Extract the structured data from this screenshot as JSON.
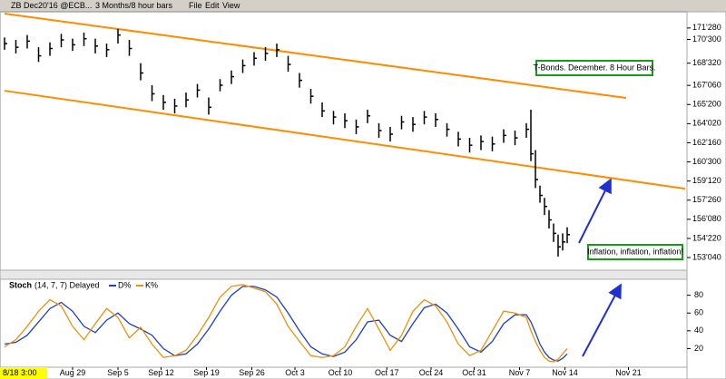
{
  "toolbar": {
    "symbol": "ZB Dec20'16 @ECB...",
    "interval": "3 Months/8 hour bars",
    "menu": [
      "File",
      "Edit",
      "View"
    ]
  },
  "chart_data": [
    {
      "type": "ohlc",
      "x": [
        0,
        1,
        2,
        3,
        4,
        5,
        6,
        7,
        8,
        9,
        10,
        11,
        12,
        13,
        14,
        15,
        16,
        17,
        18,
        19,
        20,
        21,
        22,
        23,
        24,
        25,
        26,
        27,
        28,
        29,
        30,
        31,
        32,
        33,
        34,
        35,
        36,
        37,
        38,
        39,
        40,
        41,
        42,
        43,
        44,
        45,
        46,
        46.4,
        46.8,
        47.2,
        47.6,
        48,
        48.4,
        48.8,
        49.2,
        49.6
      ],
      "high": [
        171.1,
        170.9,
        171.3,
        170.3,
        170.7,
        171.4,
        171.0,
        171.5,
        171.0,
        170.6,
        171.8,
        170.9,
        169.0,
        167.2,
        166.4,
        166.1,
        166.6,
        167.3,
        166.2,
        167.7,
        168.4,
        169.3,
        169.9,
        170.3,
        170.6,
        169.6,
        168.2,
        166.9,
        165.8,
        165.1,
        164.9,
        164.4,
        165.2,
        164.1,
        163.8,
        164.7,
        164.6,
        165.1,
        164.9,
        164.1,
        163.4,
        162.9,
        163.1,
        163.0,
        163.6,
        163.5,
        164.1,
        165.2,
        161.9,
        159.0,
        158.0,
        157.0,
        155.9,
        155.0,
        155.1,
        155.6
      ],
      "low": [
        170.1,
        169.8,
        170.2,
        169.1,
        169.6,
        170.3,
        170.0,
        170.4,
        169.8,
        169.5,
        170.6,
        169.6,
        167.6,
        165.9,
        165.2,
        164.9,
        165.4,
        166.2,
        164.8,
        166.7,
        167.3,
        168.2,
        168.8,
        169.2,
        169.5,
        168.3,
        167.0,
        165.7,
        164.6,
        164.0,
        163.7,
        163.2,
        164.1,
        162.9,
        162.6,
        163.6,
        163.4,
        164.0,
        163.8,
        163.0,
        162.2,
        161.7,
        161.9,
        161.8,
        162.5,
        162.3,
        162.9,
        161.0,
        158.8,
        157.6,
        156.6,
        155.5,
        154.4,
        153.2,
        153.7,
        154.3
      ],
      "close": [
        170.6,
        170.3,
        170.8,
        169.6,
        170.2,
        170.9,
        170.5,
        171.0,
        170.4,
        170.1,
        171.3,
        170.2,
        168.2,
        166.5,
        165.8,
        165.5,
        166.0,
        166.8,
        165.4,
        167.2,
        167.9,
        168.8,
        169.4,
        169.8,
        170.1,
        168.9,
        167.6,
        166.3,
        165.1,
        164.6,
        164.3,
        163.8,
        164.7,
        163.5,
        163.2,
        164.2,
        164.0,
        164.6,
        164.4,
        163.6,
        162.8,
        162.3,
        162.6,
        162.4,
        163.1,
        162.9,
        163.6,
        161.6,
        159.5,
        158.2,
        157.3,
        156.2,
        155.1,
        154.0,
        154.4,
        155.0
      ],
      "color": "#000000",
      "xlim": [
        0,
        60
      ],
      "ylim": [
        152.24,
        173.05
      ],
      "yticks": [
        {
          "value": 171.875,
          "label": "171'280"
        },
        {
          "value": 170.9375,
          "label": "170'300"
        },
        {
          "value": 169.0,
          "label": "168'320"
        },
        {
          "value": 167.1875,
          "label": "167'060"
        },
        {
          "value": 165.625,
          "label": "165'200"
        },
        {
          "value": 164.0625,
          "label": "164'020"
        },
        {
          "value": 162.5,
          "label": "162'160"
        },
        {
          "value": 160.9375,
          "label": "160'300"
        },
        {
          "value": 159.375,
          "label": "159'120"
        },
        {
          "value": 157.8125,
          "label": "157'260"
        },
        {
          "value": 156.25,
          "label": "156'080"
        },
        {
          "value": 154.6875,
          "label": "154'220"
        },
        {
          "value": 153.125,
          "label": "153'040"
        }
      ],
      "trendlines": [
        {
          "color": "#ff8c00",
          "x": [
            0,
            54.8
          ],
          "y": [
            173.05,
            166.16
          ]
        },
        {
          "color": "#ff8c00",
          "x": [
            0,
            60
          ],
          "y": [
            166.75,
            158.75
          ]
        }
      ],
      "annotations": [
        "T-Bonds. December. 8 Hour Bars.",
        "Inflation, inflation, inflation!"
      ]
    },
    {
      "type": "line",
      "title": "Stoch",
      "params": "(14, 7, 7) Delayed",
      "x": [
        0,
        1,
        2,
        3,
        4,
        5,
        6,
        7,
        8,
        9,
        10,
        11,
        12,
        13,
        14,
        15,
        16,
        17,
        18,
        19,
        20,
        21,
        22,
        23,
        24,
        25,
        26,
        27,
        28,
        29,
        30,
        31,
        32,
        33,
        34,
        35,
        36,
        37,
        38,
        39,
        40,
        41,
        42,
        43,
        44,
        45,
        46,
        46.4,
        46.8,
        47.2,
        47.6,
        48,
        48.4,
        48.8,
        49.2,
        49.6
      ],
      "series": [
        {
          "name": "D%",
          "color": "#1f3fbf",
          "values": [
            25,
            27,
            35,
            50,
            65,
            72,
            62,
            45,
            38,
            52,
            60,
            48,
            42,
            35,
            20,
            12,
            14,
            25,
            42,
            62,
            80,
            90,
            90,
            86,
            78,
            60,
            40,
            22,
            14,
            11,
            16,
            30,
            50,
            52,
            35,
            28,
            48,
            66,
            70,
            60,
            42,
            22,
            16,
            28,
            48,
            58,
            58,
            50,
            38,
            25,
            16,
            10,
            7,
            6,
            9,
            14
          ]
        },
        {
          "name": "K%",
          "color": "#e8920a",
          "values": [
            22,
            30,
            45,
            62,
            75,
            68,
            45,
            30,
            48,
            65,
            55,
            32,
            44,
            25,
            10,
            12,
            18,
            35,
            55,
            78,
            90,
            92,
            88,
            84,
            70,
            45,
            28,
            12,
            10,
            12,
            22,
            45,
            65,
            42,
            18,
            35,
            62,
            75,
            68,
            50,
            25,
            12,
            18,
            40,
            62,
            60,
            55,
            40,
            28,
            18,
            10,
            6,
            5,
            8,
            14,
            20
          ]
        }
      ],
      "xlim": [
        0,
        60
      ],
      "ylim": [
        -1,
        98
      ],
      "yticks": [
        20,
        40,
        60,
        80
      ],
      "cursor_label": "8/18 3:00",
      "xticks": [
        {
          "value": 6,
          "label": "Aug 29"
        },
        {
          "value": 10,
          "label": "Sep 5"
        },
        {
          "value": 13.8,
          "label": "Sep 12"
        },
        {
          "value": 17.8,
          "label": "Sep 19"
        },
        {
          "value": 21.8,
          "label": "Sep 26"
        },
        {
          "value": 25.6,
          "label": "Oct 3"
        },
        {
          "value": 29.6,
          "label": "Oct 10"
        },
        {
          "value": 33.7,
          "label": "Oct 17"
        },
        {
          "value": 37.6,
          "label": "Oct 24"
        },
        {
          "value": 41.4,
          "label": "Oct 31"
        },
        {
          "value": 45.4,
          "label": "Nov 7"
        },
        {
          "value": 49.4,
          "label": "Nov 14"
        },
        {
          "value": 55.0,
          "label": "Nov 21"
        }
      ]
    }
  ]
}
